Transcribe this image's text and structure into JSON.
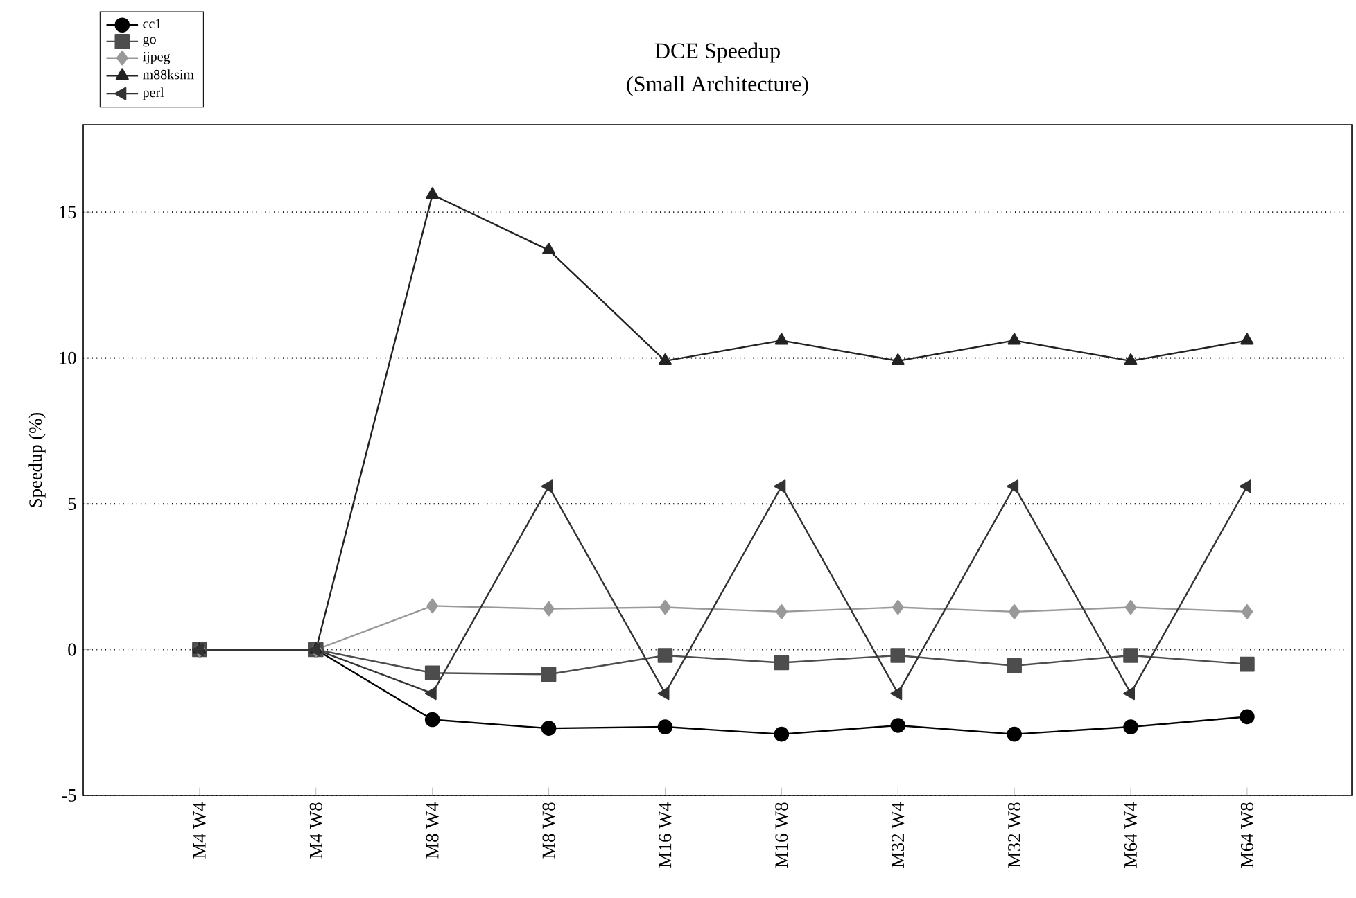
{
  "chart_data": {
    "type": "line",
    "title": "DCE Speedup",
    "subtitle": "(Small Architecture)",
    "ylabel": "Speedup (%)",
    "categories": [
      "M4 W4",
      "M4 W8",
      "M8 W4",
      "M8 W8",
      "M16 W4",
      "M16 W8",
      "M32 W4",
      "M32 W8",
      "M64 W4",
      "M64 W8"
    ],
    "series": [
      {
        "name": "cc1",
        "color": "#000000",
        "marker": "circle",
        "values": [
          0,
          0,
          -2.4,
          -2.7,
          -2.65,
          -2.9,
          -2.6,
          -2.9,
          -2.65,
          -2.3
        ]
      },
      {
        "name": "go",
        "color": "#4d4d4d",
        "marker": "square",
        "values": [
          0,
          0,
          -0.8,
          -0.85,
          -0.2,
          -0.45,
          -0.2,
          -0.55,
          -0.2,
          -0.5
        ]
      },
      {
        "name": "ijpeg",
        "color": "#999999",
        "marker": "diamond",
        "values": [
          0,
          0,
          1.5,
          1.4,
          1.45,
          1.3,
          1.45,
          1.3,
          1.45,
          1.3
        ]
      },
      {
        "name": "m88ksim",
        "color": "#222222",
        "marker": "triangle",
        "values": [
          0,
          0,
          15.6,
          13.7,
          9.9,
          10.6,
          9.9,
          10.6,
          9.9,
          10.6
        ]
      },
      {
        "name": "perl",
        "color": "#333333",
        "marker": "triangle",
        "values": [
          0,
          0,
          -1.5,
          5.6,
          -1.5,
          5.6,
          -1.5,
          5.6,
          -1.5,
          5.6
        ]
      }
    ],
    "ylim": [
      -5,
      18
    ],
    "yticks": [
      -5,
      0,
      5,
      10,
      15
    ],
    "grid": "y",
    "legend": "top left",
    "line_style": "solid"
  }
}
